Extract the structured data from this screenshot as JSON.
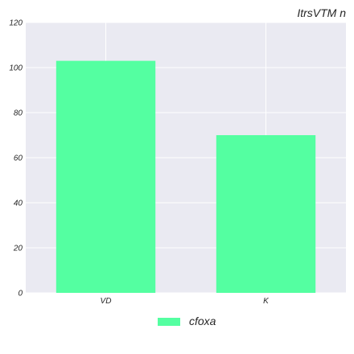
{
  "chart_data": {
    "type": "bar",
    "title": "ItrsVTM n",
    "xlabel": "",
    "ylabel": "",
    "categories": [
      "VD",
      "K"
    ],
    "series": [
      {
        "name": "cfoxa",
        "values": [
          103,
          70
        ],
        "color": "#54ffa1"
      }
    ],
    "ylim": [
      0,
      120
    ],
    "yticks": [
      0,
      20,
      40,
      60,
      80,
      100,
      120
    ],
    "grid": true,
    "legend_position": "bottom-center",
    "background_color": "#eaeaf2",
    "grid_color": "#ffffff"
  }
}
